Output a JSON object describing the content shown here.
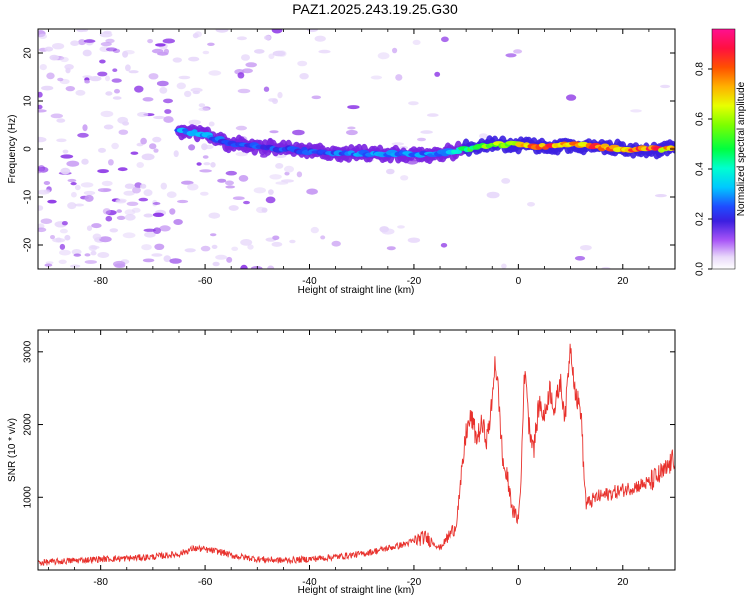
{
  "title": "PAZ1.2025.243.19.25.G30",
  "colors": {
    "snr_line": "#e8312c",
    "spectral_base": "#a055e8",
    "background": "#ffffff"
  },
  "chart_data": [
    {
      "type": "heatmap",
      "name": "spectrogram",
      "title": "PAZ1.2025.243.19.25.G30",
      "xlabel": "Height of straight line (km)",
      "ylabel": "Frequency (Hz)",
      "xlim": [
        -92,
        30
      ],
      "ylim": [
        -25,
        25
      ],
      "xticks": [
        -80,
        -60,
        -40,
        -20,
        0,
        20
      ],
      "xtick_labels": [
        "-80",
        "-60",
        "-40",
        "-20",
        "0",
        "20"
      ],
      "yticks": [
        -20,
        -10,
        0,
        10,
        20
      ],
      "ytick_labels": [
        "-20",
        "-10",
        "0",
        "10",
        "20"
      ],
      "colorbar": {
        "label": "Normalized spectral amplitude",
        "range": [
          0,
          0.96
        ],
        "ticks": [
          0.0,
          0.2,
          0.4,
          0.6,
          0.8
        ],
        "tick_labels": [
          "0.0",
          "0.2",
          "0.4",
          "0.6",
          "0.8"
        ],
        "colormap": "rainbow (white-purple-blue-cyan-green-yellow-orange-red-magenta)"
      },
      "ridge": [
        {
          "x": -65,
          "y": 4,
          "amp": 0.3
        },
        {
          "x": -60,
          "y": 3,
          "amp": 0.3
        },
        {
          "x": -55,
          "y": 1,
          "amp": 0.25
        },
        {
          "x": -40,
          "y": -0.5,
          "amp": 0.25
        },
        {
          "x": -30,
          "y": -1,
          "amp": 0.3
        },
        {
          "x": -22,
          "y": -1,
          "amp": 0.3
        },
        {
          "x": -15,
          "y": -1,
          "amp": 0.3
        },
        {
          "x": -10,
          "y": 0,
          "amp": 0.5
        },
        {
          "x": -5,
          "y": 1,
          "amp": 0.6
        },
        {
          "x": 0,
          "y": 1,
          "amp": 0.7
        },
        {
          "x": 5,
          "y": 0.5,
          "amp": 0.85
        },
        {
          "x": 10,
          "y": 1,
          "amp": 0.85
        },
        {
          "x": 20,
          "y": 0,
          "amp": 0.85
        },
        {
          "x": 30,
          "y": 0,
          "amp": 0.8
        }
      ]
    },
    {
      "type": "line",
      "name": "snr",
      "xlabel": "Height of straight line (km)",
      "ylabel": "SNR (10 * v/v)",
      "xlim": [
        -92,
        30
      ],
      "ylim": [
        0,
        3300
      ],
      "xticks": [
        -80,
        -60,
        -40,
        -20,
        0,
        20
      ],
      "xtick_labels": [
        "-80",
        "-60",
        "-40",
        "-20",
        "0",
        "20"
      ],
      "yticks": [
        1000,
        2000,
        3000
      ],
      "ytick_labels": [
        "1000",
        "2000",
        "3000"
      ],
      "series": [
        {
          "name": "SNR",
          "x": [
            -92,
            -85,
            -80,
            -75,
            -70,
            -65,
            -62,
            -60,
            -57,
            -55,
            -50,
            -45,
            -40,
            -35,
            -30,
            -25,
            -22,
            -20,
            -18,
            -17,
            -15,
            -12,
            -11,
            -10,
            -9,
            -8,
            -7,
            -6,
            -5,
            -4.5,
            -4,
            -3,
            -2,
            -1,
            0,
            0.5,
            1,
            1.5,
            2,
            3,
            4,
            5,
            6,
            7,
            8,
            9,
            9.5,
            10,
            11,
            12,
            12.5,
            13,
            15,
            20,
            25,
            28,
            29,
            30
          ],
          "y": [
            100,
            130,
            150,
            160,
            180,
            220,
            300,
            280,
            250,
            200,
            150,
            130,
            150,
            180,
            220,
            300,
            350,
            400,
            450,
            420,
            300,
            600,
            1200,
            1900,
            2100,
            1800,
            2000,
            1800,
            2300,
            2900,
            2600,
            1500,
            1200,
            800,
            700,
            1200,
            2500,
            2700,
            2000,
            1700,
            2300,
            2100,
            2500,
            2200,
            2600,
            2100,
            2700,
            3100,
            2400,
            2200,
            1400,
            900,
            1000,
            1100,
            1200,
            1350,
            1450,
            1550
          ]
        }
      ]
    }
  ]
}
